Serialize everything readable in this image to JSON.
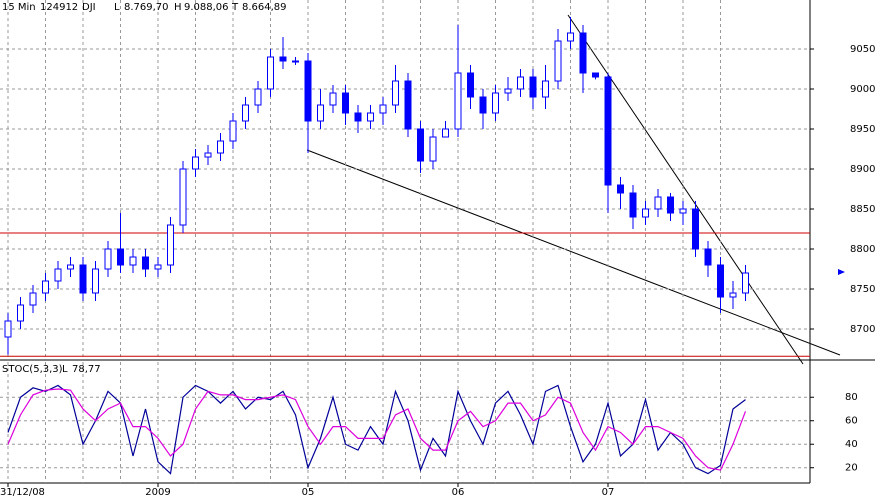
{
  "chart_data": [
    {
      "type": "candlestick",
      "title_parts": [
        "15 Min",
        "124912",
        "DJI",
        "L",
        "8.769,70",
        "H",
        "9.088,06",
        "T",
        "8.664,89"
      ],
      "categories": [
        "31/12/08",
        null,
        null,
        null,
        null,
        null,
        null,
        null,
        null,
        null,
        null,
        null,
        "2009",
        null,
        null,
        null,
        null,
        null,
        null,
        null,
        null,
        null,
        null,
        null,
        "05",
        null,
        null,
        null,
        null,
        null,
        null,
        null,
        null,
        null,
        null,
        null,
        "06",
        null,
        null,
        null,
        null,
        null,
        null,
        null,
        null,
        null,
        null,
        null,
        "07",
        null,
        null,
        null,
        null,
        null,
        null,
        null,
        null,
        null,
        null,
        null
      ],
      "open": [
        8690,
        8710,
        8730,
        8745,
        8760,
        8775,
        8780,
        8745,
        8775,
        8800,
        8780,
        8790,
        8775,
        8780,
        8830,
        8900,
        8915,
        8920,
        8935,
        8960,
        8980,
        9000,
        9040,
        9035,
        9035,
        8960,
        8980,
        8995,
        8970,
        8960,
        8970,
        8980,
        9010,
        8950,
        8910,
        8940,
        8950,
        9020,
        8990,
        8970,
        8995,
        9000,
        9015,
        8990,
        9010,
        9060,
        9070,
        9020,
        9015,
        8880,
        8870,
        8840,
        8850,
        8865,
        8845,
        8850,
        8800,
        8780,
        8740,
        8745
      ],
      "high": [
        8720,
        8740,
        8755,
        8770,
        8785,
        8790,
        8790,
        8785,
        8810,
        8845,
        8800,
        8800,
        8790,
        8840,
        8910,
        8925,
        8930,
        8945,
        8970,
        8990,
        9010,
        9050,
        9065,
        9040,
        9045,
        9000,
        9005,
        9005,
        8980,
        8980,
        8990,
        9030,
        9020,
        8960,
        8950,
        8960,
        9080,
        9030,
        9000,
        9005,
        9015,
        9025,
        9025,
        9030,
        9075,
        9090,
        9080,
        9020,
        9020,
        8890,
        8880,
        8860,
        8875,
        8870,
        8860,
        8860,
        8810,
        8790,
        8760,
        8780
      ],
      "low": [
        8668,
        8700,
        8720,
        8735,
        8750,
        8765,
        8735,
        8735,
        8765,
        8770,
        8770,
        8765,
        8765,
        8770,
        8820,
        8890,
        8905,
        8910,
        8925,
        8950,
        8970,
        8990,
        9025,
        9030,
        8920,
        8950,
        8970,
        8955,
        8945,
        8950,
        8955,
        8970,
        8940,
        8895,
        8900,
        8940,
        8940,
        8975,
        8950,
        8960,
        8985,
        8990,
        8975,
        8975,
        9000,
        9050,
        8995,
        9012,
        8845,
        8850,
        8825,
        8830,
        8840,
        8835,
        8830,
        8790,
        8765,
        8720,
        8725,
        8735
      ],
      "close": [
        8710,
        8730,
        8745,
        8760,
        8775,
        8780,
        8745,
        8775,
        8800,
        8780,
        8790,
        8775,
        8780,
        8830,
        8900,
        8915,
        8920,
        8935,
        8960,
        8980,
        9000,
        9040,
        9035,
        9035,
        8960,
        8980,
        8995,
        8970,
        8960,
        8970,
        8980,
        9010,
        8950,
        8910,
        8940,
        8950,
        9020,
        8990,
        8970,
        8995,
        9000,
        9015,
        8990,
        9010,
        9060,
        9070,
        9020,
        9015,
        8880,
        8870,
        8840,
        8850,
        8865,
        8845,
        8850,
        8800,
        8780,
        8740,
        8745,
        8770
      ],
      "color": "#0000ff",
      "hlines": [
        8820,
        8666
      ],
      "hline_color": "#cc0000",
      "ylim": [
        8663.75,
        9111.25
      ],
      "yticks": [
        8700,
        8750,
        8800,
        8850,
        8900,
        8950,
        9000,
        9050
      ],
      "grid": true
    },
    {
      "type": "line",
      "title_parts": [
        "STOC(5,3,3)",
        "L",
        "78,77"
      ],
      "series": [
        {
          "color": "#000099",
          "values": [
            50,
            80,
            88,
            85,
            90,
            82,
            40,
            60,
            85,
            75,
            30,
            70,
            25,
            15,
            80,
            90,
            85,
            75,
            85,
            70,
            80,
            78,
            85,
            65,
            20,
            45,
            80,
            40,
            35,
            55,
            40,
            85,
            60,
            18,
            45,
            30,
            85,
            60,
            40,
            75,
            85,
            65,
            40,
            85,
            90,
            55,
            25,
            40,
            75,
            30,
            40,
            78,
            35,
            50,
            40,
            20,
            15,
            22,
            70,
            78
          ]
        },
        {
          "color": "#dd00dd",
          "values": [
            40,
            65,
            82,
            86,
            87,
            86,
            70,
            60,
            70,
            75,
            55,
            55,
            45,
            30,
            40,
            70,
            85,
            82,
            82,
            78,
            78,
            80,
            82,
            78,
            55,
            40,
            55,
            55,
            45,
            45,
            45,
            65,
            70,
            45,
            35,
            35,
            60,
            68,
            55,
            60,
            75,
            75,
            60,
            65,
            80,
            75,
            50,
            35,
            55,
            50,
            40,
            55,
            55,
            50,
            45,
            30,
            20,
            18,
            40,
            68
          ]
        }
      ],
      "ylim": [
        7,
        110
      ],
      "yticks": [
        20,
        40,
        60,
        80
      ],
      "grid": true
    }
  ]
}
